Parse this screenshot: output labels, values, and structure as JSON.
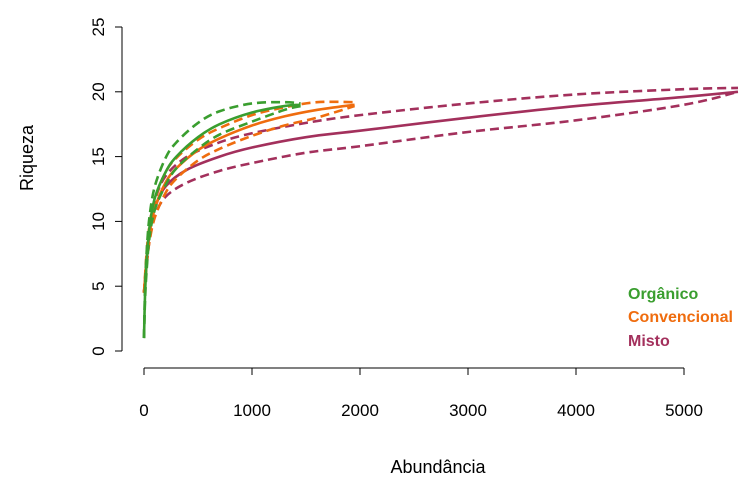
{
  "chart_data": {
    "type": "line",
    "title": "",
    "xlabel": "Abundância",
    "ylabel": "Riqueza",
    "xlim": [
      0,
      5500
    ],
    "ylim": [
      0,
      25
    ],
    "x_ticks": [
      "0",
      "1000",
      "2000",
      "3000",
      "4000",
      "5000"
    ],
    "y_ticks": [
      "0",
      "5",
      "10",
      "15",
      "20",
      "25"
    ],
    "grid": false,
    "legend_position": "bottom-right",
    "series": [
      {
        "name": "Orgânico",
        "color": "#3a9e2f",
        "x": [
          0,
          10,
          25,
          50,
          100,
          200,
          300,
          500,
          700,
          1000,
          1300,
          1450
        ],
        "mean": [
          1,
          4.5,
          7.0,
          9.5,
          11.8,
          13.8,
          15.0,
          16.5,
          17.5,
          18.4,
          18.9,
          19.0
        ],
        "lower": [
          1,
          4.0,
          6.3,
          8.7,
          10.9,
          12.8,
          14.1,
          15.6,
          16.7,
          17.7,
          18.6,
          18.9
        ],
        "upper": [
          1,
          5.0,
          7.7,
          10.3,
          12.7,
          14.9,
          16.1,
          17.6,
          18.5,
          19.1,
          19.2,
          19.1
        ]
      },
      {
        "name": "Convencional",
        "color": "#ef6c0e",
        "x": [
          0,
          25,
          50,
          100,
          200,
          300,
          500,
          700,
          1000,
          1300,
          1600,
          1950
        ],
        "mean": [
          4.5,
          7.2,
          9.0,
          11.0,
          13.0,
          14.1,
          15.5,
          16.4,
          17.4,
          18.1,
          18.6,
          19.0
        ],
        "lower": [
          4.5,
          6.7,
          8.4,
          10.3,
          12.2,
          13.3,
          14.7,
          15.6,
          16.6,
          17.4,
          18.0,
          18.9
        ],
        "upper": [
          4.5,
          7.7,
          9.6,
          11.7,
          13.8,
          14.9,
          16.3,
          17.2,
          18.2,
          18.8,
          19.2,
          19.2
        ]
      },
      {
        "name": "Misto",
        "color": "#a3305c",
        "x": [
          0,
          50,
          100,
          200,
          400,
          700,
          1000,
          1500,
          2000,
          3000,
          4000,
          5000,
          5500
        ],
        "mean": [
          4.5,
          9.0,
          11.0,
          12.7,
          14.0,
          15.0,
          15.7,
          16.5,
          17.0,
          18.0,
          18.9,
          19.6,
          20.0
        ],
        "lower": [
          4.5,
          8.5,
          10.4,
          11.9,
          13.0,
          13.9,
          14.5,
          15.3,
          15.8,
          16.9,
          17.8,
          19.0,
          20.0
        ],
        "upper": [
          4.5,
          9.5,
          11.6,
          13.5,
          15.0,
          16.1,
          16.8,
          17.6,
          18.2,
          19.1,
          19.8,
          20.2,
          20.3
        ]
      }
    ],
    "legend": [
      "Orgânico",
      "Convencional",
      "Misto"
    ]
  }
}
